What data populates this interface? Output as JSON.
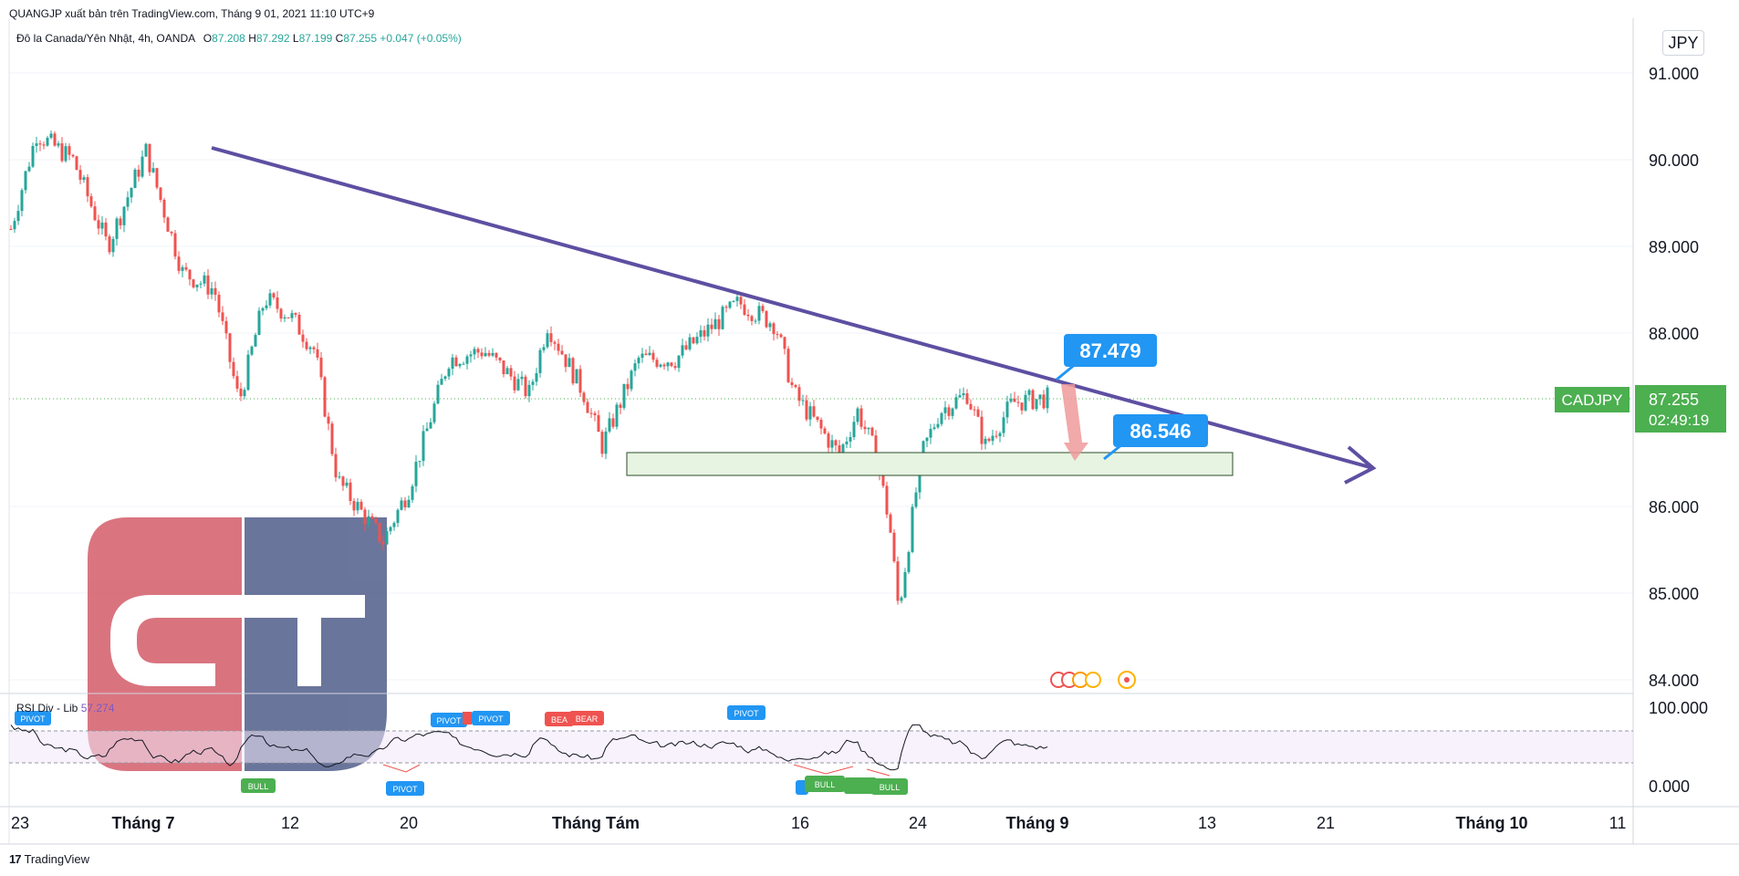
{
  "header": {
    "attribution": "QUANGJP xuất bản trên TradingView.com, Tháng 9 01, 2021 11:10 UTC+9",
    "symbol_desc": "Đô la Canada/Yên Nhật, 4h, OANDA",
    "ohlc": [
      {
        "k": "O",
        "v": "87.208"
      },
      {
        "k": "H",
        "v": "87.292"
      },
      {
        "k": "L",
        "v": "87.199"
      },
      {
        "k": "C",
        "v": "87.255"
      }
    ],
    "change": "+0.047 (+0.05%)"
  },
  "currency_button": "JPY",
  "price_axis": {
    "ticks": [
      "91.000",
      "90.000",
      "89.000",
      "88.000",
      "86.000",
      "85.000",
      "84.000"
    ],
    "ticks_values": [
      91,
      90,
      89,
      88,
      86,
      85,
      84
    ]
  },
  "last_price": {
    "symbol_label": "CADJPY",
    "price": "87.255",
    "countdown": "02:49:19",
    "color": "#4caf50"
  },
  "rsi_panel": {
    "name": "RSI Div - Lib",
    "value": "57.274",
    "axis_ticks": [
      "100.000",
      "0.000"
    ]
  },
  "time_axis": {
    "labels": [
      "23",
      "Tháng 7",
      "12",
      "20",
      "Tháng Tám",
      "16",
      "24",
      "Tháng 9",
      "13",
      "21",
      "Tháng 10",
      "11"
    ],
    "bold": [
      false,
      true,
      false,
      false,
      true,
      false,
      false,
      true,
      false,
      false,
      true,
      false
    ]
  },
  "annotations": {
    "callout_upper": "87.479",
    "callout_lower": "86.546",
    "trendline_color": "#5e4fa2",
    "support_zone_color": "#e6f4e1",
    "callout_color": "#2196f3"
  },
  "rsi_labels": [
    {
      "text": "PIVOT",
      "kind": "pivot"
    },
    {
      "text": "BULL",
      "kind": "bull"
    },
    {
      "text": "PIVOT",
      "kind": "pivot"
    },
    {
      "text": "PIVOT",
      "kind": "pivot"
    },
    {
      "text": "PIVOT",
      "kind": "pivot"
    },
    {
      "text": "BEA",
      "kind": "bear"
    },
    {
      "text": "BEAR",
      "kind": "bear"
    },
    {
      "text": "PIVOT",
      "kind": "pivot"
    },
    {
      "text": "BULL",
      "kind": "bull"
    },
    {
      "text": "BULL",
      "kind": "bull"
    }
  ],
  "footer_brand": "TradingView",
  "chart_data": {
    "type": "candlestick",
    "symbol": "CADJPY",
    "timeframe": "4h",
    "ylim": [
      84.0,
      91.4
    ],
    "anchors": [
      {
        "x": "23",
        "y": 89.2
      },
      {
        "x": "25",
        "y": 90.3
      },
      {
        "x": "28",
        "y": 90.0
      },
      {
        "x": "Tháng 7",
        "y": 89.0
      },
      {
        "x": "7",
        "y": 90.1
      },
      {
        "x": "8",
        "y": 88.7
      },
      {
        "x": "9",
        "y": 88.5
      },
      {
        "x": "10",
        "y": 87.2
      },
      {
        "x": "12",
        "y": 88.4
      },
      {
        "x": "14",
        "y": 88.2
      },
      {
        "x": "15",
        "y": 87.8
      },
      {
        "x": "18",
        "y": 86.3
      },
      {
        "x": "19",
        "y": 85.6
      },
      {
        "x": "20",
        "y": 86.2
      },
      {
        "x": "21",
        "y": 87.7
      },
      {
        "x": "23",
        "y": 87.8
      },
      {
        "x": "27",
        "y": 87.3
      },
      {
        "x": "28",
        "y": 88.1
      },
      {
        "x": "30",
        "y": 87.3
      },
      {
        "x": "31",
        "y": 86.7
      },
      {
        "x": "Tháng Tám",
        "y": 87.7
      },
      {
        "x": "4",
        "y": 87.7
      },
      {
        "x": "9",
        "y": 88.35
      },
      {
        "x": "11",
        "y": 88.1
      },
      {
        "x": "13",
        "y": 87.3
      },
      {
        "x": "16",
        "y": 86.6
      },
      {
        "x": "17",
        "y": 87.1
      },
      {
        "x": "19",
        "y": 86.6
      },
      {
        "x": "20",
        "y": 85.8
      },
      {
        "x": "21",
        "y": 84.8
      },
      {
        "x": "23",
        "y": 86.6
      },
      {
        "x": "24",
        "y": 87.1
      },
      {
        "x": "26",
        "y": 87.3
      },
      {
        "x": "27",
        "y": 86.7
      },
      {
        "x": "30",
        "y": 87.2
      },
      {
        "x": "Tháng 9",
        "y": 87.255
      }
    ],
    "trendline": [
      {
        "x": "7",
        "y": 90.1
      },
      {
        "x": "24",
        "y": 86.4
      }
    ],
    "support_zone": {
      "y_from": 86.35,
      "y_to": 86.6,
      "x_from": "27",
      "x_to": "5"
    },
    "last_close": 87.255,
    "rsi": {
      "upper_band": 70,
      "lower_band": 30,
      "last": 57.274
    }
  }
}
